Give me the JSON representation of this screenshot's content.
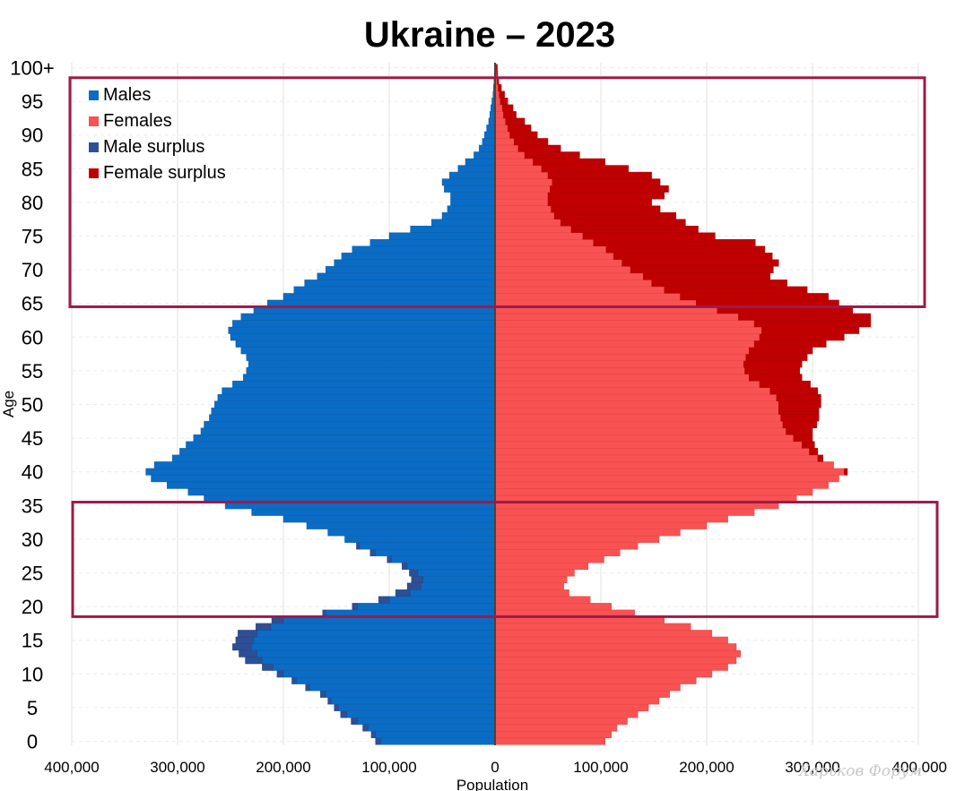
{
  "chart_data": {
    "type": "bar",
    "orientation": "horizontal-population-pyramid",
    "title": "Ukraine – 2023",
    "xlabel": "Population",
    "ylabel": "Age",
    "xlim": [
      -400000,
      400000
    ],
    "x_ticks": [
      -400000,
      -300000,
      -200000,
      -100000,
      0,
      100000,
      200000,
      300000,
      400000
    ],
    "x_tick_labels": [
      "400,000",
      "300,000",
      "200,000",
      "100,000",
      "0",
      "100,000",
      "200,000",
      "300,000",
      "400,000"
    ],
    "y_ticks": [
      0,
      5,
      10,
      15,
      20,
      25,
      30,
      35,
      40,
      45,
      50,
      55,
      60,
      65,
      70,
      75,
      80,
      85,
      90,
      95,
      100
    ],
    "y_tick_labels": [
      "0",
      "5",
      "10",
      "15",
      "20",
      "25",
      "30",
      "35",
      "40",
      "45",
      "50",
      "55",
      "60",
      "65",
      "70",
      "75",
      "80",
      "85",
      "90",
      "95",
      "100+"
    ],
    "grid": true,
    "legend_position": "top-left",
    "series": [
      {
        "name": "Males",
        "color": "#0a6cc4",
        "values": [
          108000,
          113000,
          120000,
          130000,
          140000,
          148000,
          155000,
          160000,
          175000,
          188000,
          200000,
          210000,
          220000,
          225000,
          230000,
          228000,
          225000,
          212000,
          200000,
          160000,
          130000,
          100000,
          80000,
          70000,
          68000,
          73000,
          83000,
          98000,
          113000,
          128000,
          142000,
          158000,
          178000,
          200000,
          230000,
          255000,
          275000,
          290000,
          310000,
          325000,
          330000,
          322000,
          305000,
          298000,
          292000,
          285000,
          278000,
          275000,
          270000,
          268000,
          265000,
          262000,
          258000,
          248000,
          238000,
          235000,
          233000,
          235000,
          240000,
          245000,
          250000,
          252000,
          248000,
          240000,
          228000,
          215000,
          200000,
          190000,
          180000,
          168000,
          160000,
          152000,
          145000,
          135000,
          118000,
          100000,
          80000,
          60000,
          50000,
          45000,
          42000,
          42000,
          48000,
          50000,
          43000,
          35000,
          28000,
          20000,
          15000,
          12000,
          10000,
          8000,
          6000,
          5000,
          4000,
          3000,
          2000,
          1500,
          1000,
          700,
          600
        ]
      },
      {
        "name": "Females",
        "color": "#f85252",
        "values": [
          104000,
          110000,
          115000,
          125000,
          135000,
          145000,
          155000,
          165000,
          175000,
          190000,
          205000,
          220000,
          228000,
          232000,
          228000,
          220000,
          205000,
          185000,
          160000,
          132000,
          110000,
          90000,
          70000,
          65000,
          68000,
          75000,
          88000,
          103000,
          118000,
          135000,
          155000,
          175000,
          200000,
          220000,
          245000,
          268000,
          285000,
          300000,
          315000,
          325000,
          330000,
          320000,
          305000,
          297000,
          290000,
          282000,
          275000,
          272000,
          270000,
          268000,
          268000,
          266000,
          260000,
          250000,
          240000,
          236000,
          235000,
          237000,
          240000,
          245000,
          250000,
          252000,
          245000,
          230000,
          210000,
          190000,
          175000,
          160000,
          148000,
          140000,
          128000,
          120000,
          112000,
          105000,
          93000,
          83000,
          72000,
          62000,
          56000,
          53000,
          50000,
          50000,
          52000,
          54000,
          50000,
          44000,
          36000,
          28000,
          22000,
          18000,
          14000,
          12000,
          10000,
          8000,
          7000,
          5000,
          4000,
          3000,
          2000,
          1500,
          1200
        ]
      },
      {
        "name": "Male surplus",
        "color": "#2d4f95",
        "values": [
          5000,
          4000,
          5000,
          6000,
          6000,
          4000,
          3000,
          5000,
          4000,
          4000,
          6000,
          10000,
          16000,
          17000,
          18000,
          17000,
          18000,
          14000,
          11000,
          3000,
          5000,
          10000,
          14000,
          13000,
          11000,
          8000,
          5000,
          4000,
          5000,
          3000,
          0,
          0,
          0,
          0,
          0,
          0,
          0,
          0,
          0,
          0,
          0,
          0,
          0,
          0,
          0,
          0,
          0,
          0,
          0,
          0,
          0,
          0,
          0,
          0,
          0,
          0,
          0,
          0,
          0,
          0,
          0,
          0,
          0,
          0,
          0,
          0,
          0,
          0,
          0,
          0,
          0,
          0,
          0,
          0,
          0,
          0,
          0,
          0,
          0,
          0,
          0,
          0,
          0,
          0,
          0,
          0,
          0,
          0,
          0,
          0,
          0,
          0,
          0,
          0,
          0,
          0,
          0,
          0,
          0,
          0,
          0
        ]
      },
      {
        "name": "Female surplus",
        "color": "#c00000",
        "values": [
          0,
          0,
          0,
          0,
          0,
          0,
          0,
          0,
          0,
          0,
          0,
          0,
          0,
          0,
          0,
          0,
          0,
          0,
          0,
          0,
          0,
          0,
          0,
          0,
          0,
          0,
          0,
          0,
          0,
          0,
          0,
          0,
          0,
          0,
          0,
          0,
          0,
          0,
          0,
          0,
          3000,
          0,
          5000,
          8000,
          12000,
          18000,
          25000,
          32000,
          36000,
          38000,
          40000,
          42000,
          45000,
          48000,
          50000,
          52000,
          55000,
          58000,
          60000,
          68000,
          80000,
          92000,
          110000,
          125000,
          128000,
          135000,
          140000,
          135000,
          128000,
          120000,
          135000,
          148000,
          150000,
          150000,
          153000,
          125000,
          120000,
          118000,
          115000,
          103000,
          98000,
          110000,
          112000,
          102000,
          98000,
          82000,
          68000,
          52000,
          40000,
          32000,
          26000,
          22000,
          18000,
          12000,
          10000,
          7000,
          5000,
          3000,
          1500,
          1000,
          1000
        ]
      }
    ],
    "annotations": [
      {
        "type": "highlight-box",
        "age_range": [
          64,
          98
        ]
      },
      {
        "type": "highlight-box",
        "age_range": [
          18,
          35
        ]
      }
    ],
    "watermark": "Харьков Форум"
  }
}
